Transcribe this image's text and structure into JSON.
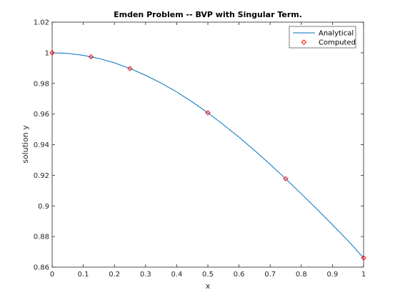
{
  "chart_data": {
    "type": "line",
    "title": "Emden Problem -- BVP with Singular Term.",
    "xlabel": "x",
    "ylabel": "solution y",
    "xlim": [
      0,
      1
    ],
    "ylim": [
      0.86,
      1.02
    ],
    "xticks": [
      0,
      0.1,
      0.2,
      0.3,
      0.4,
      0.5,
      0.6,
      0.7,
      0.8,
      0.9,
      1
    ],
    "xtick_labels": [
      "0",
      "0.1",
      "0.2",
      "0.3",
      "0.4",
      "0.5",
      "0.6",
      "0.7",
      "0.8",
      "0.9",
      "1"
    ],
    "yticks": [
      0.86,
      0.88,
      0.9,
      0.92,
      0.94,
      0.96,
      0.98,
      1,
      1.02
    ],
    "ytick_labels": [
      "0.86",
      "0.88",
      "0.9",
      "0.92",
      "0.94",
      "0.96",
      "0.98",
      "1",
      "1.02"
    ],
    "grid": false,
    "legend_position": "top-right",
    "series": [
      {
        "name": "Analytical",
        "style": "line",
        "color": "#0072bd",
        "x": [
          0,
          0.05,
          0.1,
          0.15,
          0.2,
          0.25,
          0.3,
          0.35,
          0.4,
          0.45,
          0.5,
          0.55,
          0.6,
          0.65,
          0.7,
          0.75,
          0.8,
          0.85,
          0.9,
          0.95,
          1
        ],
        "y": [
          1.0,
          0.9996,
          0.9983,
          0.9963,
          0.9934,
          0.9897,
          0.9853,
          0.9802,
          0.9744,
          0.9679,
          0.9608,
          0.953,
          0.9449,
          0.9362,
          0.9271,
          0.9177,
          0.9079,
          0.8979,
          0.8877,
          0.8773,
          0.866
        ]
      },
      {
        "name": "Computed",
        "style": "marker",
        "marker": "diamond",
        "color": "#ff0000",
        "x": [
          0,
          0.125,
          0.25,
          0.5,
          0.75,
          1
        ],
        "y": [
          1.0,
          0.9974,
          0.9897,
          0.9608,
          0.9177,
          0.866
        ]
      }
    ]
  }
}
